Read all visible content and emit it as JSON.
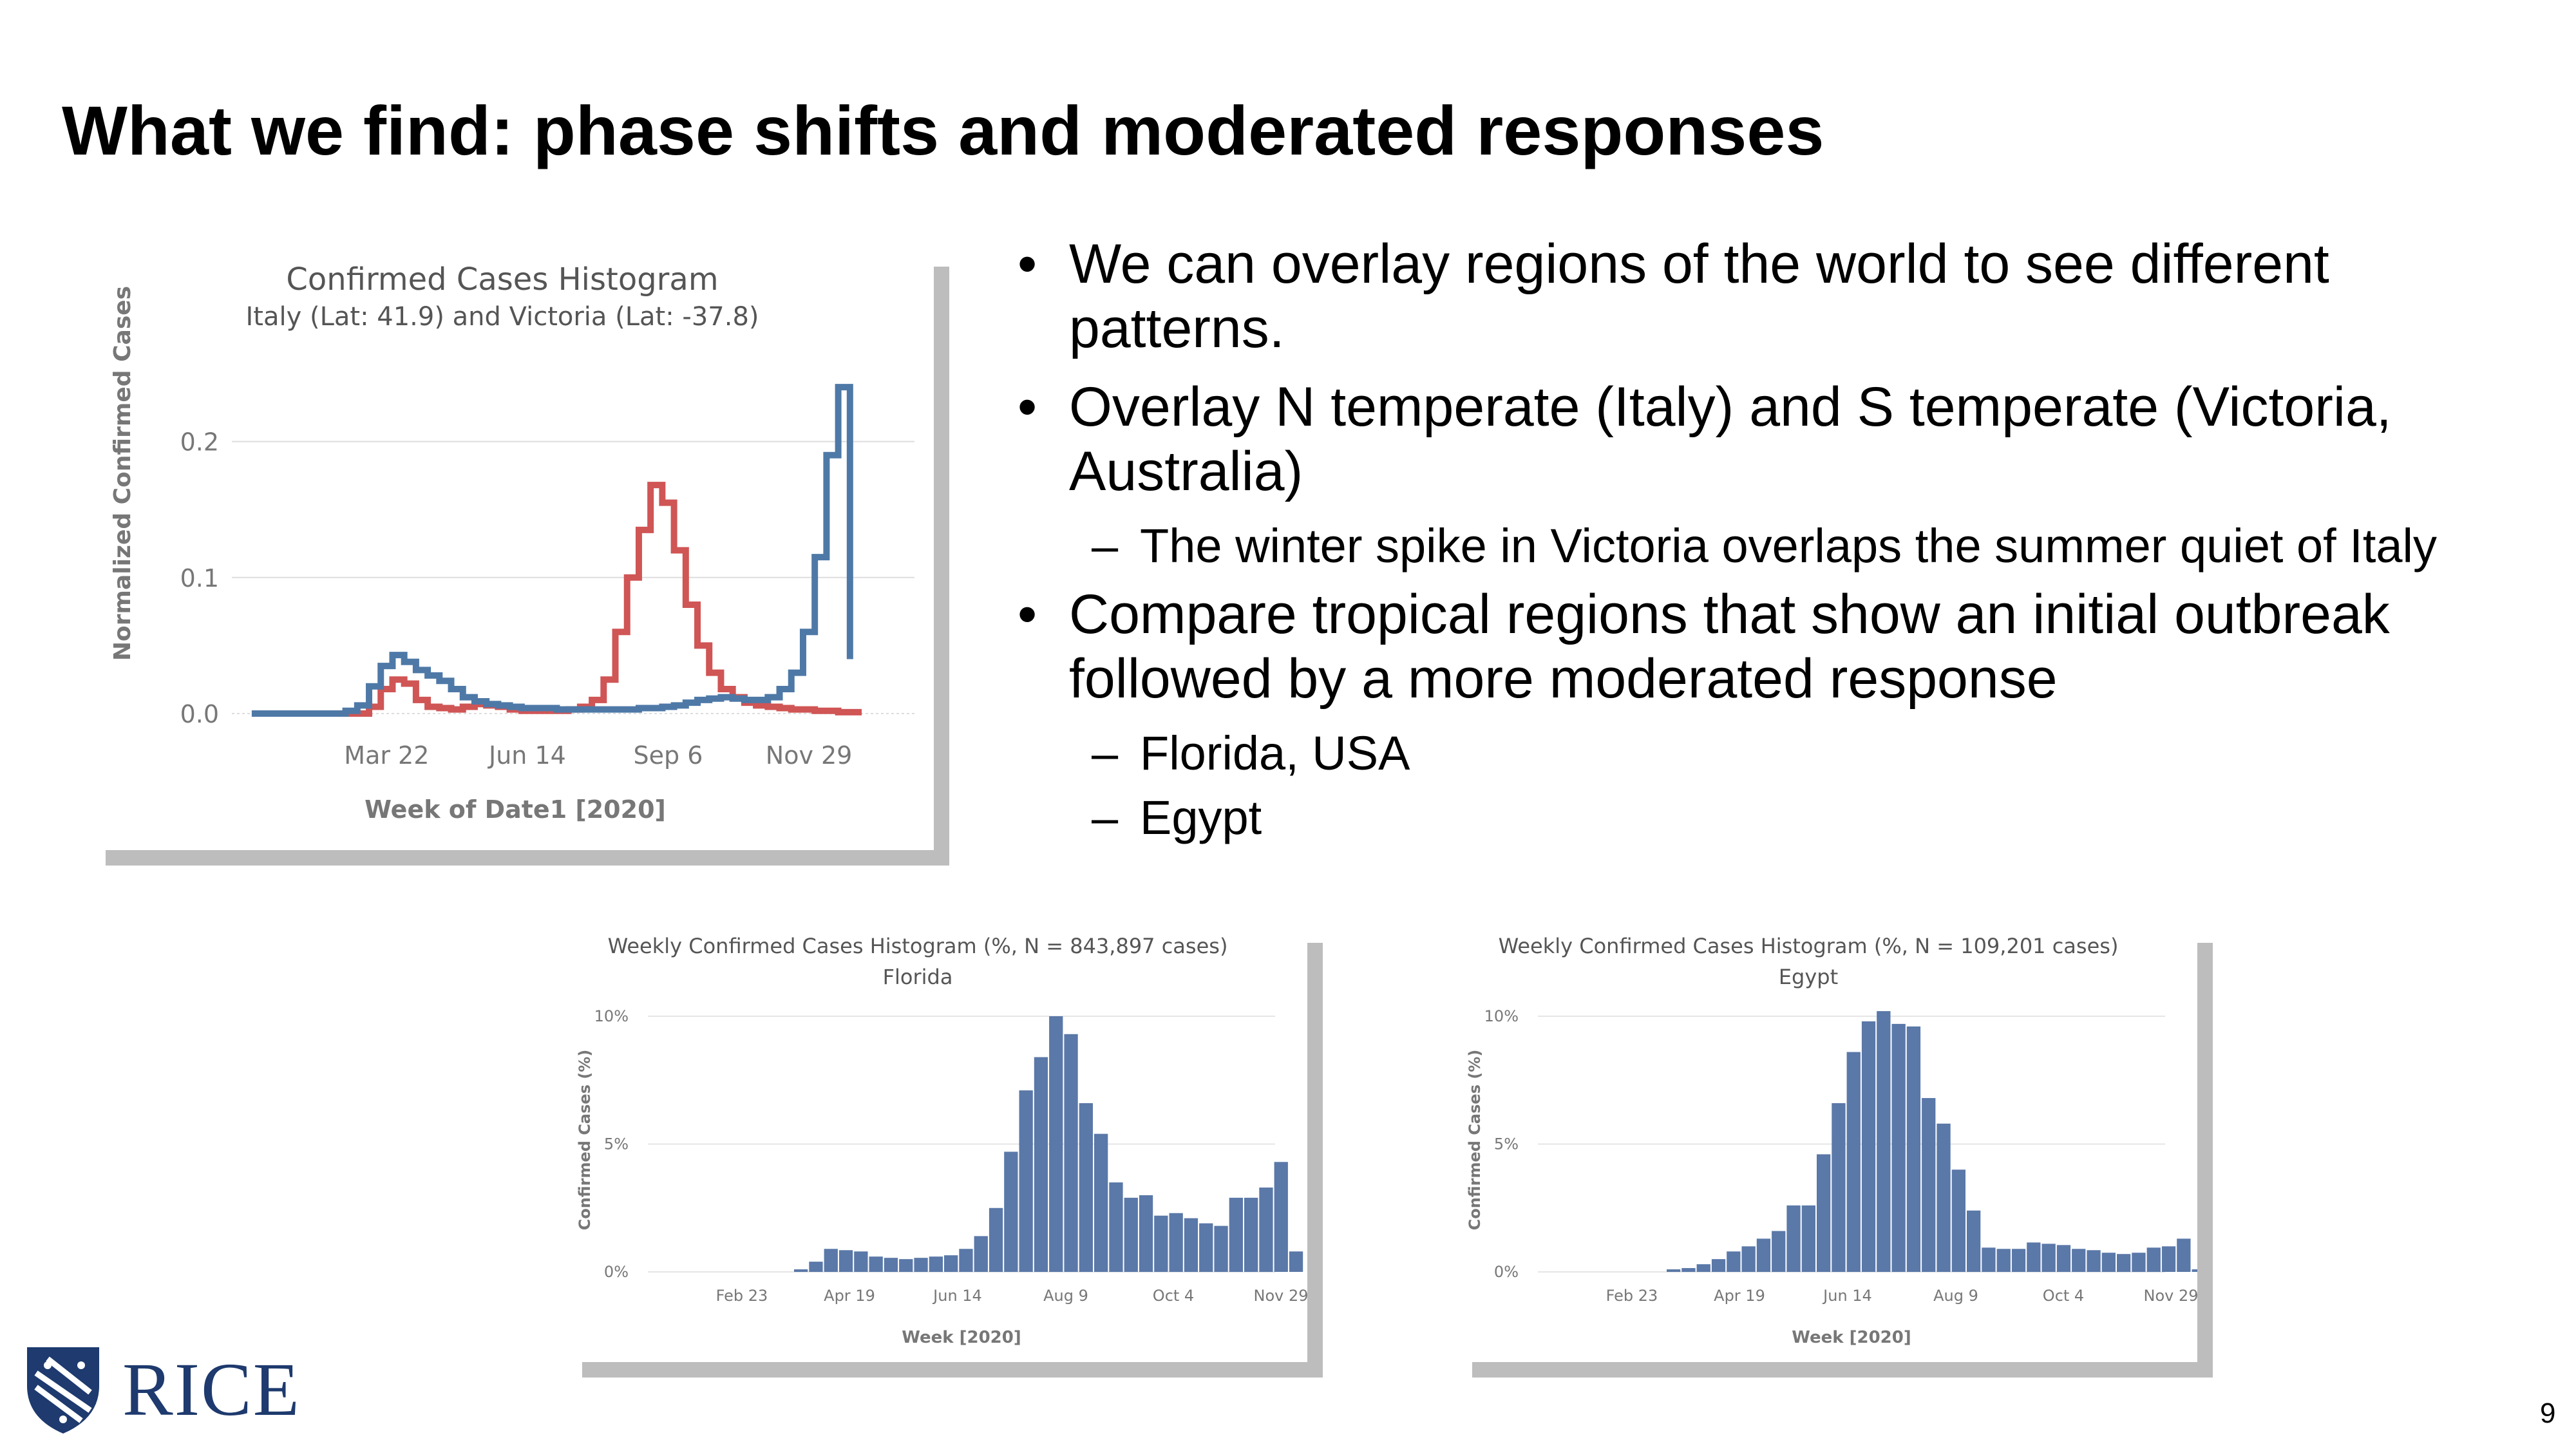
{
  "slide": {
    "title": "What we find: phase shifts and moderated responses",
    "page_number": "9",
    "logo_text": "RICE"
  },
  "bullets": [
    {
      "level": 1,
      "text": "We can overlay regions of the world to see different patterns."
    },
    {
      "level": 1,
      "text": "Overlay N temperate (Italy) and S temperate (Victoria, Australia)"
    },
    {
      "level": 2,
      "text": "The winter spike in  Victoria overlaps the summer quiet of Italy"
    },
    {
      "level": 1,
      "text": "Compare tropical regions that show an initial outbreak followed by a more moderated response"
    },
    {
      "level": 2,
      "text": "Florida, USA"
    },
    {
      "level": 2,
      "text": "Egypt"
    }
  ],
  "chart_data": [
    {
      "type": "line",
      "title": "Confirmed Cases Histogram",
      "subtitle": "Italy (Lat: 41.9) and Victoria (Lat: -37.8)",
      "xlabel": "Week of Date1 [2020]",
      "ylabel": "Normalized Confirmed Cases",
      "x_tick_labels": [
        "Mar 22",
        "Jun 14",
        "Sep 6",
        "Nov 29"
      ],
      "y_tick_labels": [
        "0.0",
        "0.1",
        "0.2"
      ],
      "ylim": [
        0,
        0.25
      ],
      "step": true,
      "grid": true,
      "colors": {
        "Italy": "#4e79a7",
        "Victoria": "#d05555"
      },
      "series": [
        {
          "name": "Italy",
          "color": "#4e79a7",
          "x": [
            1,
            2,
            3,
            4,
            5,
            6,
            7,
            8,
            9,
            10,
            11,
            12,
            13,
            14,
            15,
            16,
            17,
            18,
            19,
            20,
            21,
            22,
            23,
            24,
            25,
            26,
            27,
            28,
            29,
            30,
            31,
            32,
            33,
            34,
            35,
            36,
            37,
            38,
            39,
            40,
            41,
            42,
            43,
            44,
            45,
            46,
            47,
            48,
            49,
            50,
            51
          ],
          "values": [
            0,
            0,
            0,
            0,
            0,
            0,
            0,
            0,
            0.002,
            0.006,
            0.02,
            0.035,
            0.043,
            0.038,
            0.032,
            0.028,
            0.024,
            0.018,
            0.012,
            0.009,
            0.007,
            0.006,
            0.005,
            0.004,
            0.004,
            0.004,
            0.003,
            0.003,
            0.003,
            0.003,
            0.003,
            0.003,
            0.003,
            0.004,
            0.004,
            0.005,
            0.006,
            0.008,
            0.01,
            0.011,
            0.012,
            0.011,
            0.01,
            0.01,
            0.012,
            0.018,
            0.03,
            0.06,
            0.115,
            0.19,
            0.24
          ]
        },
        {
          "name": "Victoria",
          "color": "#d05555",
          "x": [
            8,
            9,
            10,
            11,
            12,
            13,
            14,
            15,
            16,
            17,
            18,
            19,
            20,
            21,
            22,
            23,
            24,
            25,
            26,
            27,
            28,
            29,
            30,
            31,
            32,
            33,
            34,
            35,
            36,
            37,
            38,
            39,
            40,
            41,
            42,
            43,
            44,
            45,
            46,
            47,
            48,
            49,
            50,
            51,
            52
          ],
          "values": [
            0,
            0,
            0,
            0.005,
            0.018,
            0.025,
            0.022,
            0.01,
            0.005,
            0.004,
            0.003,
            0.005,
            0.007,
            0.006,
            0.005,
            0.003,
            0.002,
            0.002,
            0.002,
            0.002,
            0.003,
            0.005,
            0.01,
            0.025,
            0.06,
            0.1,
            0.135,
            0.168,
            0.155,
            0.12,
            0.08,
            0.05,
            0.03,
            0.018,
            0.012,
            0.008,
            0.006,
            0.005,
            0.004,
            0.003,
            0.003,
            0.002,
            0.002,
            0.001,
            0.001
          ]
        }
      ]
    },
    {
      "type": "bar",
      "title": "Weekly Confirmed Cases Histogram (%, N = 843,897 cases)",
      "subtitle": "Florida",
      "xlabel": "Week [2020]",
      "ylabel": "Confirmed Cases (%)",
      "x_tick_labels": [
        "Feb 23",
        "Apr 19",
        "Jun 14",
        "Aug 9",
        "Oct 4",
        "Nov 29"
      ],
      "y_tick_labels": [
        "0%",
        "5%",
        "10%"
      ],
      "ylim": [
        0,
        10
      ],
      "color": "#5a78a8",
      "values": [
        0.1,
        0.4,
        0.9,
        0.85,
        0.8,
        0.6,
        0.55,
        0.5,
        0.55,
        0.6,
        0.65,
        0.9,
        1.4,
        2.5,
        4.7,
        7.1,
        8.4,
        10.0,
        9.3,
        6.6,
        5.4,
        3.5,
        2.9,
        3.0,
        2.2,
        2.3,
        2.1,
        1.9,
        1.8,
        2.9,
        2.9,
        3.3,
        4.3,
        0.8
      ]
    },
    {
      "type": "bar",
      "title": "Weekly Confirmed Cases Histogram (%, N = 109,201 cases)",
      "subtitle": "Egypt",
      "xlabel": "Week [2020]",
      "ylabel": "Confirmed Cases (%)",
      "x_tick_labels": [
        "Feb 23",
        "Apr 19",
        "Jun 14",
        "Aug 9",
        "Oct 4",
        "Nov 29"
      ],
      "y_tick_labels": [
        "0%",
        "5%",
        "10%"
      ],
      "ylim": [
        0,
        10
      ],
      "color": "#5a78a8",
      "values": [
        0.1,
        0.15,
        0.3,
        0.5,
        0.8,
        1.0,
        1.3,
        1.6,
        2.6,
        2.6,
        4.6,
        6.6,
        8.6,
        9.8,
        10.2,
        9.7,
        9.6,
        6.8,
        5.8,
        4.0,
        2.4,
        0.95,
        0.9,
        0.9,
        1.15,
        1.1,
        1.05,
        0.9,
        0.85,
        0.75,
        0.7,
        0.75,
        0.95,
        1.0,
        1.3,
        0.1
      ]
    }
  ]
}
